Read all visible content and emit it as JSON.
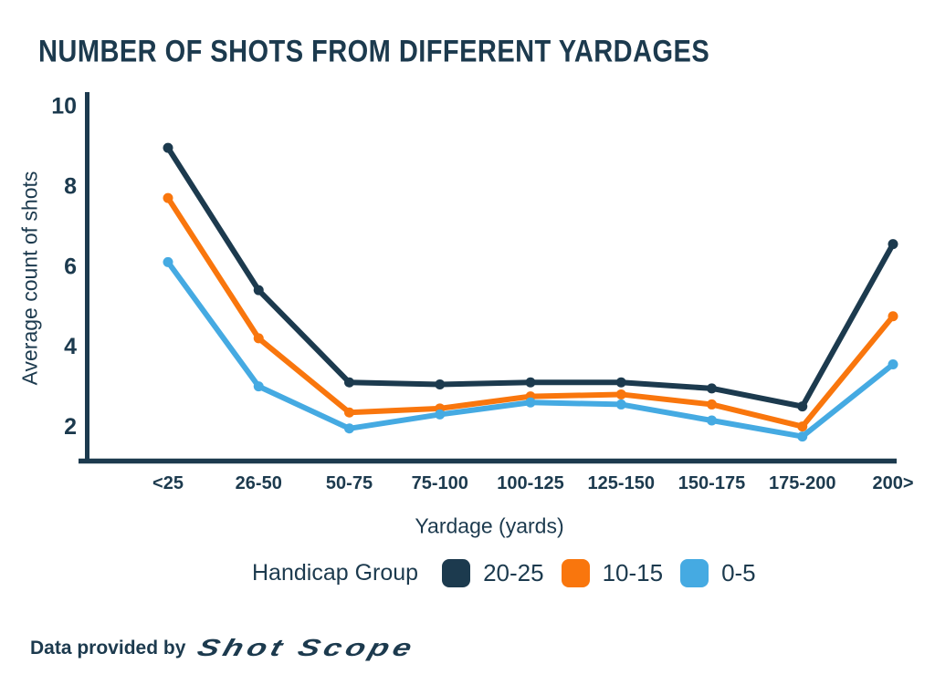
{
  "title": "NUMBER OF SHOTS FROM DIFFERENT YARDAGES",
  "colors": {
    "text": "#1c3a4e",
    "axis": "#1c3a4e",
    "background": "#ffffff",
    "navy": "#1c3a4e",
    "orange": "#f9760d",
    "blue": "#45aae2"
  },
  "chart_data": {
    "type": "line",
    "title": "NUMBER OF SHOTS FROM DIFFERENT YARDAGES",
    "categories": [
      "<25",
      "26-50",
      "50-75",
      "75-100",
      "100-125",
      "125-150",
      "150-175",
      "175-200",
      "200>"
    ],
    "series": [
      {
        "name": "20-25",
        "color": "#1c3a4e",
        "values": [
          8.95,
          5.4,
          3.1,
          3.05,
          3.1,
          3.1,
          2.95,
          2.5,
          6.55
        ]
      },
      {
        "name": "10-15",
        "color": "#f9760d",
        "values": [
          7.7,
          4.2,
          2.35,
          2.45,
          2.75,
          2.8,
          2.55,
          2.0,
          4.75
        ]
      },
      {
        "name": "0-5",
        "color": "#45aae2",
        "values": [
          6.1,
          3.0,
          1.95,
          2.3,
          2.6,
          2.55,
          2.15,
          1.75,
          3.55
        ]
      }
    ],
    "xlabel": "Yardage (yards)",
    "ylabel": "Average count of shots",
    "yticks": [
      2,
      4,
      6,
      8,
      10
    ],
    "ylim": [
      1,
      10
    ],
    "grid": false,
    "markers": true,
    "legend_title": "Handicap Group",
    "legend_position": "bottom"
  },
  "footer": {
    "prefix": "Data provided by",
    "logo_text": "Shot Scope"
  }
}
